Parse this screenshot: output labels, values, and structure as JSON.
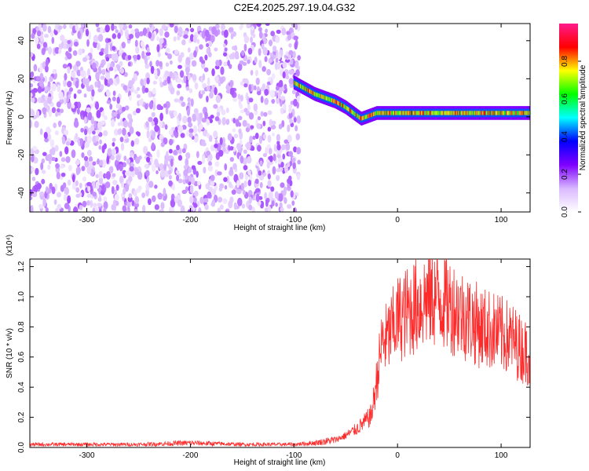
{
  "title": "C2E4.2025.297.19.04.G32",
  "chart_data": [
    {
      "type": "heatmap",
      "xlabel": "Height of straight line (km)",
      "ylabel": "Frequency (Hz)",
      "xlim": [
        -355,
        128
      ],
      "ylim": [
        -50,
        49
      ],
      "xticks": [
        -300,
        -200,
        -100,
        0,
        100
      ],
      "yticks": [
        -40,
        -20,
        0,
        20,
        40
      ],
      "colorbar": {
        "label": "Normalized spectral amplitude",
        "range": [
          0.0,
          1.0
        ],
        "ticks": [
          0.0,
          0.2,
          0.4,
          0.6,
          0.8
        ],
        "colors": [
          "#ffffff",
          "#d9b8ff",
          "#7f00ff",
          "#0000ff",
          "#00ffff",
          "#00ff00",
          "#ffff00",
          "#ff0000",
          "#ff1a8c"
        ]
      },
      "noise_region": {
        "x": [
          -355,
          -95
        ],
        "amplitude": 0.2
      },
      "ridge": {
        "x": [
          -100,
          -90,
          -80,
          -70,
          -60,
          -50,
          -40,
          -35,
          -30,
          -20,
          -10,
          0,
          20,
          40,
          60,
          80,
          100,
          128
        ],
        "y": [
          18,
          15,
          12,
          10,
          8,
          5,
          1,
          -1,
          0,
          2,
          2,
          2,
          2,
          2,
          2,
          2,
          2,
          2
        ]
      }
    },
    {
      "type": "line",
      "xlabel": "Height of straight line (km)",
      "ylabel": "SNR (10 * v/v)",
      "yscale_label": "(x10⁴)",
      "xlim": [
        -355,
        128
      ],
      "ylim": [
        0,
        1.25
      ],
      "xticks": [
        -300,
        -200,
        -100,
        0,
        100
      ],
      "yticks": [
        0.0,
        0.2,
        0.4,
        0.6,
        0.8,
        1.0,
        1.2
      ],
      "color": "#ff2a2a",
      "series": [
        {
          "x": [
            -355,
            -300,
            -250,
            -200,
            -150,
            -120,
            -100,
            -80,
            -60,
            -50,
            -40,
            -30,
            -25,
            -20,
            -15,
            -10,
            0,
            10,
            20,
            30,
            40,
            50,
            60,
            70,
            80,
            90,
            100,
            110,
            120,
            128
          ],
          "y": [
            0.02,
            0.02,
            0.02,
            0.03,
            0.02,
            0.02,
            0.02,
            0.03,
            0.05,
            0.08,
            0.12,
            0.18,
            0.22,
            0.45,
            0.7,
            0.72,
            0.85,
            0.9,
            0.95,
            1.0,
            1.0,
            0.95,
            0.9,
            0.85,
            0.8,
            0.78,
            0.75,
            0.72,
            0.65,
            0.62
          ]
        }
      ]
    }
  ]
}
